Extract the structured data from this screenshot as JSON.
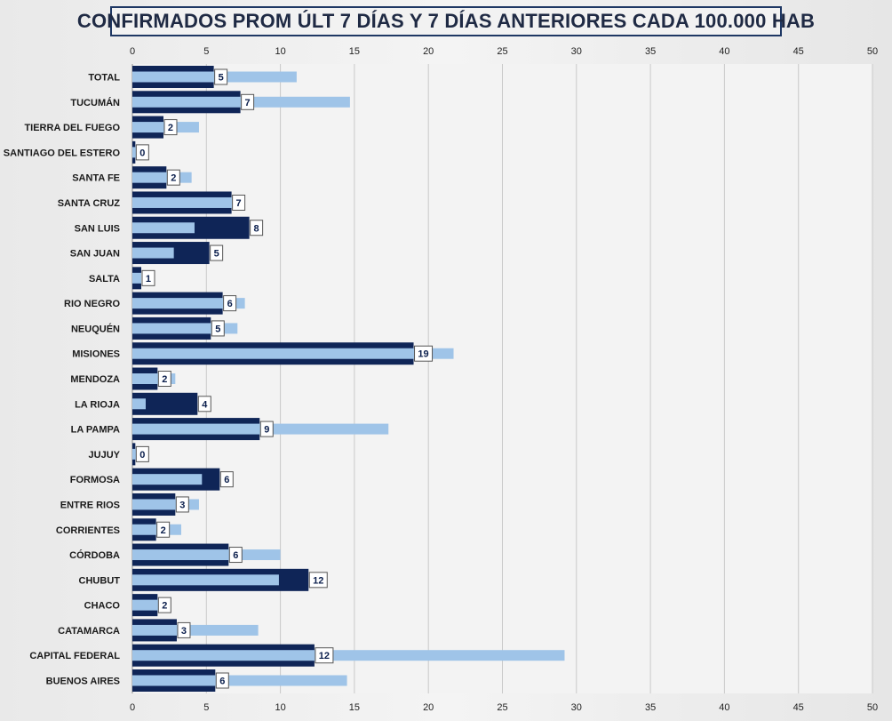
{
  "chart_data": {
    "type": "bar",
    "orientation": "horizontal",
    "title": "CONFIRMADOS PROM ÚLT 7 DÍAS Y 7 DÍAS ANTERIORES CADA 100.000 HAB",
    "xlim": [
      0,
      50
    ],
    "x_ticks": [
      "0",
      "5",
      "10",
      "15",
      "20",
      "25",
      "30",
      "35",
      "40",
      "45",
      "50"
    ],
    "grid": true,
    "legend": "none",
    "colors": {
      "current": "#0f2557",
      "previous": "#9fc4e8",
      "label_border": "#555555"
    },
    "categories": [
      "TOTAL",
      "TUCUMÁN",
      "TIERRA  DEL FUEGO",
      "SANTIAGO  DEL ESTERO",
      "SANTA FE",
      "SANTA CRUZ",
      "SAN LUIS",
      "SAN JUAN",
      "SALTA",
      "RIO NEGRO",
      "NEUQUÉN",
      "MISIONES",
      "MENDOZA",
      "LA RIOJA",
      "LA PAMPA",
      "JUJUY",
      "FORMOSA",
      "ENTRE RIOS",
      "CORRIENTES",
      "CÓRDOBA",
      "CHUBUT",
      "CHACO",
      "CATAMARCA",
      "CAPITAL FEDERAL",
      "BUENOS AIRES"
    ],
    "series": [
      {
        "values": [
          5.5,
          7.3,
          2.1,
          0.2,
          2.3,
          6.7,
          7.9,
          5.2,
          0.6,
          6.1,
          5.3,
          19.0,
          1.7,
          4.4,
          8.6,
          0.2,
          5.9,
          2.9,
          1.6,
          6.5,
          11.9,
          1.7,
          3.0,
          12.3,
          5.6
        ]
      },
      {
        "values": [
          11.1,
          14.7,
          4.5,
          0.3,
          4.0,
          6.8,
          4.2,
          2.8,
          0.6,
          7.6,
          7.1,
          21.7,
          2.9,
          0.9,
          17.3,
          0.3,
          4.7,
          4.5,
          3.3,
          10.0,
          9.9,
          1.8,
          8.5,
          29.2,
          14.5
        ]
      }
    ],
    "data_labels": [
      "5",
      "7",
      "2",
      "0",
      "2",
      "7",
      "8",
      "5",
      "1",
      "6",
      "5",
      "19",
      "2",
      "4",
      "9",
      "0",
      "6",
      "3",
      "2",
      "6",
      "12",
      "2",
      "3",
      "12",
      "6"
    ]
  }
}
